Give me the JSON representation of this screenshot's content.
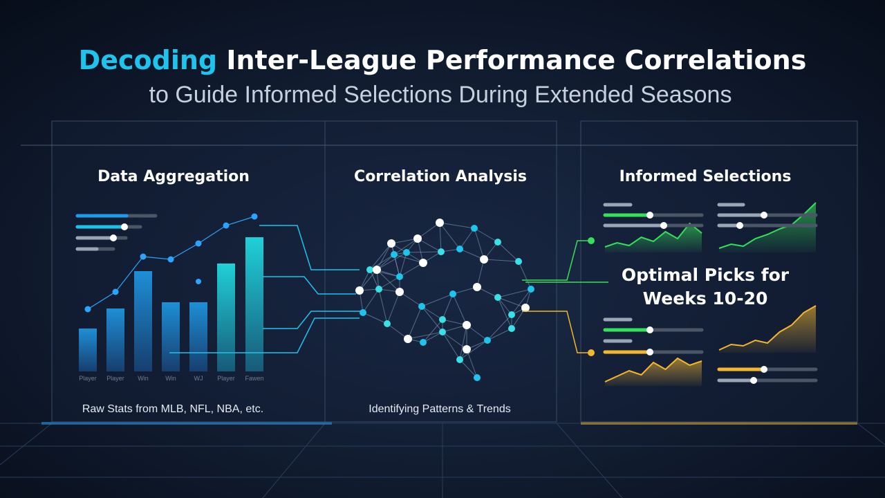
{
  "header": {
    "title_highlight": "Decoding",
    "title_rest": "Inter-League Performance Correlations",
    "subtitle": "to Guide Informed Selections During Extended Seasons"
  },
  "panels": [
    {
      "title": "Data Aggregation",
      "caption": "Raw Stats from MLB, NFL, NBA, etc.",
      "bar_labels": [
        "Player",
        "Player",
        "Win",
        "Win",
        "WJ",
        "Player",
        "Fawen"
      ]
    },
    {
      "title": "Correlation Analysis",
      "caption": "Identifying Patterns & Trends"
    },
    {
      "title": "Informed Selections",
      "callout": [
        "Optimal Picks for",
        "Weeks 10-20"
      ]
    }
  ]
}
